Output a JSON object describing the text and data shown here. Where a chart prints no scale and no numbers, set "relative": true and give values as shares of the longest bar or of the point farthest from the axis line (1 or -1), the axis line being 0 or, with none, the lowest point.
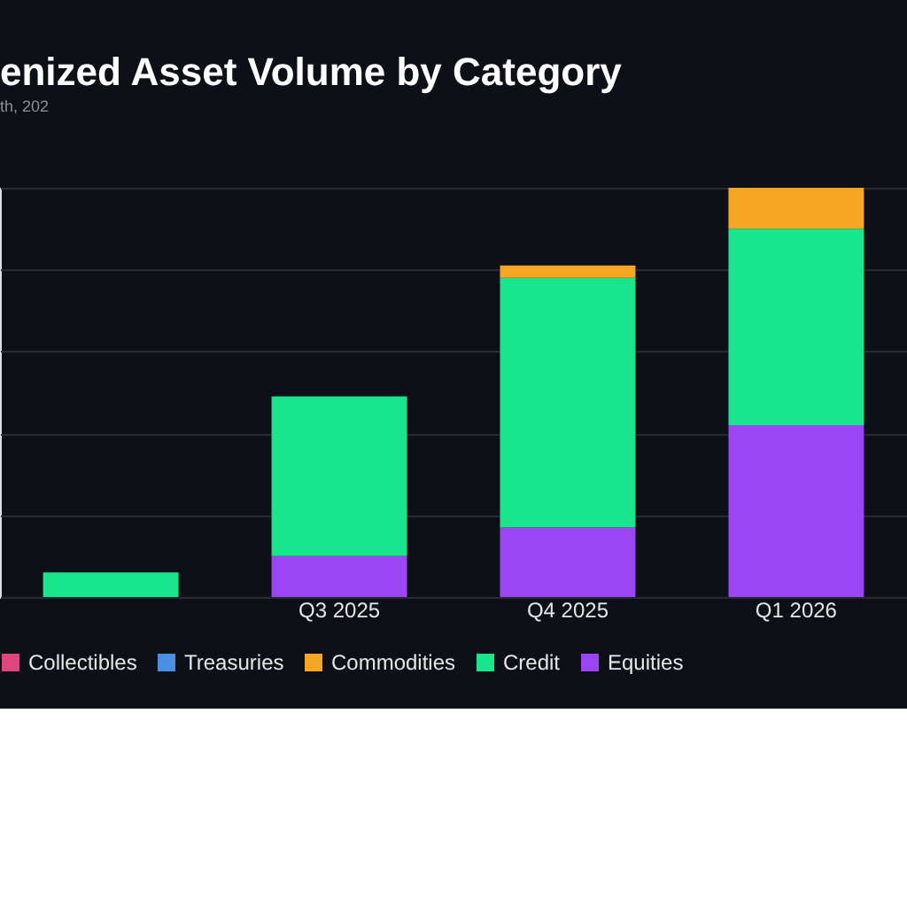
{
  "chart_data": {
    "type": "bar",
    "title": "enized Asset Volume by Category",
    "relative": true,
    "stacked": true,
    "grid": "y",
    "legend": "bottom",
    "categories": [
      null,
      "Q3 2025",
      "Q4 2025",
      "Q1 2026"
    ],
    "series": [
      {
        "name": "Equities",
        "color": "#9b45f5",
        "values": [
          0,
          0.1,
          0.17,
          0.42
        ]
      },
      {
        "name": "Credit",
        "color": "#19e68c",
        "values": [
          0.06,
          0.39,
          0.61,
          0.48
        ]
      },
      {
        "name": "Commodities",
        "color": "#f5a623",
        "values": [
          0,
          0,
          0.03,
          0.1
        ]
      },
      {
        "name": "Treasuries",
        "color": "#4a90e2",
        "values": [
          0,
          0,
          0,
          0
        ]
      },
      {
        "name": "Collectibles",
        "color": "#e0457b",
        "values": [
          0,
          0,
          0,
          0
        ]
      }
    ],
    "annotations": [
      "th, 202"
    ]
  }
}
